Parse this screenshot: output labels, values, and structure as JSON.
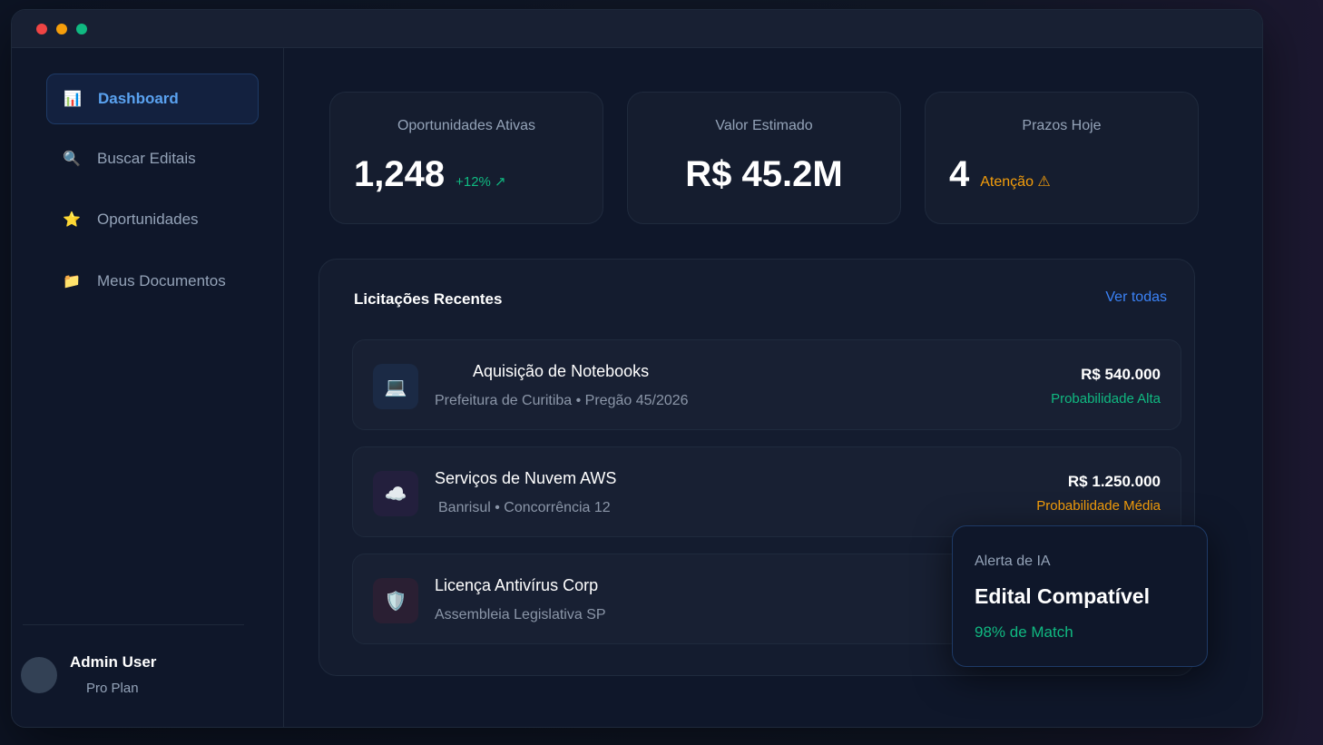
{
  "window": {
    "controls": [
      "close",
      "minimize",
      "maximize"
    ],
    "colors": {
      "close": "#ef4444",
      "minimize": "#f59e0b",
      "maximize": "#10b981"
    }
  },
  "sidebar": {
    "items": [
      {
        "label": "Dashboard",
        "icon": "bar-chart-icon",
        "glyph": "📊",
        "active": true
      },
      {
        "label": "Buscar Editais",
        "icon": "search-icon",
        "glyph": "🔍"
      },
      {
        "label": "Oportunidades",
        "icon": "star-icon",
        "glyph": "⭐"
      },
      {
        "label": "Meus Documentos",
        "icon": "folder-icon",
        "glyph": "📁"
      }
    ],
    "user": {
      "name": "Admin User",
      "plan": "Pro Plan"
    }
  },
  "stats": [
    {
      "label": "Oportunidades Ativas",
      "value": "1,248",
      "delta": "+12% ↗",
      "delta_color": "#10b981"
    },
    {
      "label": "Valor Estimado",
      "value": "R$ 45.2M"
    },
    {
      "label": "Prazos Hoje",
      "value": "4",
      "note": "Atenção ⚠",
      "note_color": "#f59e0b"
    }
  ],
  "recent": {
    "title": "Licitações Recentes",
    "view_all": "Ver todas",
    "items": [
      {
        "title": "Aquisição de Notebooks",
        "subtitle": "Prefeitura de Curitiba • Pregão 45/2026",
        "amount": "R$ 540.000",
        "probability": "Probabilidade Alta",
        "prob_color": "#10b981",
        "icon": "laptop-icon",
        "glyph": "💻"
      },
      {
        "title": "Serviços de Nuvem AWS",
        "subtitle": "Banrisul • Concorrência 12",
        "amount": "R$ 1.250.000",
        "probability": "Probabilidade Média",
        "prob_color": "#f59e0b",
        "icon": "cloud-icon",
        "glyph": "☁️"
      },
      {
        "title": "Licença Antivírus Corp",
        "subtitle": "Assembleia Legislativa SP",
        "icon": "shield-icon",
        "glyph": "🛡️"
      }
    ]
  },
  "ai_alert": {
    "kicker": "Alerta de IA",
    "title": "Edital Compatível",
    "match": "98% de Match"
  }
}
